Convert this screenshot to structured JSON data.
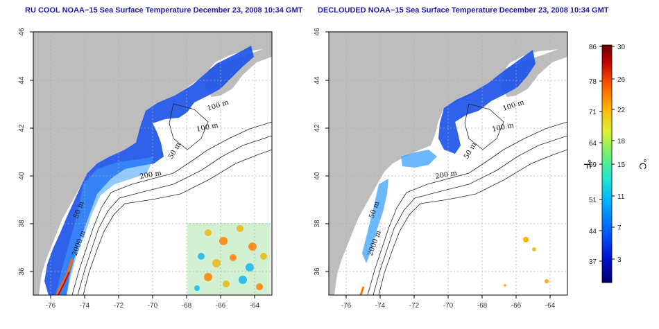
{
  "left_panel": {
    "title": "RU COOL NOAA−15 Sea Surface Temperature December 23, 2008 10:34 GMT",
    "y_ticks": [
      "46",
      "44",
      "42",
      "40",
      "38",
      "36"
    ],
    "x_ticks": [
      "-76",
      "-74",
      "-72",
      "-70",
      "-68",
      "-66",
      "-64"
    ],
    "isobaths": [
      "100 m",
      "100 m",
      "50 m",
      "200 m",
      "50 m",
      "2000 m"
    ]
  },
  "right_panel": {
    "title": "DECLOUDED NOAA−15 Sea Surface Temperature December 23, 2008 10:34 GMT",
    "y_ticks": [
      "46",
      "44",
      "42",
      "40",
      "38",
      "36"
    ],
    "x_ticks": [
      "-76",
      "-74",
      "-72",
      "-70",
      "-68",
      "-66",
      "-64"
    ],
    "isobaths": [
      "100 m",
      "100 m",
      "50 m",
      "200 m",
      "50 m",
      "2000 m"
    ]
  },
  "colorbar": {
    "fahrenheit_ticks": [
      "86",
      "78",
      "71",
      "64",
      "59",
      "51",
      "44",
      "37"
    ],
    "celsius_ticks": [
      "30",
      "26",
      "22",
      "18",
      "15",
      "11",
      "7",
      "3"
    ],
    "left_unit": "°F",
    "right_unit": "°C",
    "colors": [
      "#00006a",
      "#0010d0",
      "#0060ff",
      "#00b0ff",
      "#20e8d0",
      "#70f070",
      "#e0f030",
      "#ffb000",
      "#ff5000",
      "#c00000",
      "#6a0000"
    ]
  },
  "colors": {
    "land": "#bdbdbd",
    "title": "#1a1aa8",
    "grid": "#aaaaaa"
  }
}
